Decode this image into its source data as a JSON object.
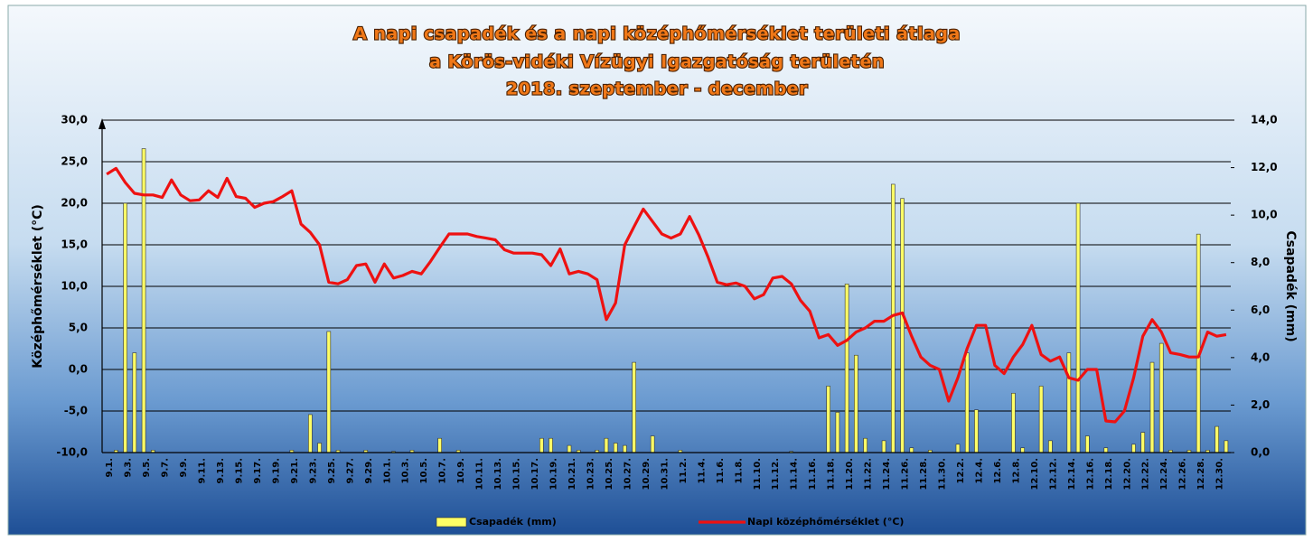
{
  "chart_data": {
    "type": "bar_line",
    "title": [
      "A napi csapadék és a napi középhőmérséklet területi átlaga",
      "a Körös-vidéki Vízügyi Igazgatóság területén",
      "2018. szeptember - december"
    ],
    "y_label": "Középhőmérséklet (°C)",
    "y2_label": "Csapadék (mm)",
    "categories": [
      "9.1.",
      null,
      "9.3.",
      null,
      "9.5.",
      null,
      "9.7.",
      null,
      "9.9.",
      null,
      "9.11.",
      null,
      "9.13.",
      null,
      "9.15.",
      null,
      "9.17.",
      null,
      "9.19.",
      null,
      "9.21.",
      null,
      "9.23.",
      null,
      "9.25.",
      null,
      "9.27.",
      null,
      "9.29.",
      null,
      "10.1.",
      null,
      "10.3.",
      null,
      "10.5.",
      null,
      "10.7.",
      null,
      "10.9.",
      null,
      "10.11.",
      null,
      "10.13.",
      null,
      "10.15.",
      null,
      "10.17.",
      null,
      "10.19.",
      null,
      "10.21.",
      null,
      "10.23.",
      null,
      "10.25.",
      null,
      "10.27.",
      null,
      "10.29.",
      null,
      "10.31.",
      null,
      "11.2.",
      null,
      "11.4.",
      null,
      "11.6.",
      null,
      "11.8.",
      null,
      "11.10.",
      null,
      "11.12.",
      null,
      "11.14.",
      null,
      "11.16.",
      null,
      "11.18.",
      null,
      "11.20.",
      null,
      "11.22.",
      null,
      "11.24.",
      null,
      "11.26.",
      null,
      "11.28.",
      null,
      "11.30.",
      null,
      "12.2.",
      null,
      "12.4.",
      null,
      "12.6.",
      null,
      "12.8.",
      null,
      "12.10.",
      null,
      "12.12.",
      null,
      "12.14.",
      null,
      "12.16.",
      null,
      "12.18.",
      null,
      "12.20.",
      null,
      "12.22.",
      null,
      "12.24.",
      null,
      "12.26.",
      null,
      "12.28.",
      null,
      "12.30.",
      null
    ],
    "series": [
      {
        "name": "Csapadék (mm)",
        "type": "bar",
        "axis": "y2",
        "color": "#ffff66",
        "values": [
          0,
          0.1,
          10.5,
          4.2,
          12.8,
          0.1,
          0,
          0,
          0,
          0,
          0,
          0,
          0,
          0,
          0,
          0,
          0,
          0,
          0,
          0,
          0.1,
          0,
          1.6,
          0.4,
          5.1,
          0.1,
          0,
          0,
          0.1,
          0,
          0,
          0.05,
          0,
          0.1,
          0,
          0,
          0.6,
          0,
          0.1,
          0,
          0,
          0,
          0,
          0,
          0,
          0,
          0,
          0.6,
          0.6,
          0,
          0.3,
          0.1,
          0,
          0.1,
          0.6,
          0.4,
          0.3,
          3.8,
          0,
          0.7,
          0,
          0,
          0.1,
          0,
          0,
          0,
          0,
          0,
          0,
          0,
          0,
          0,
          0,
          0,
          0.05,
          0,
          0,
          0,
          2.8,
          1.7,
          7.1,
          4.1,
          0.6,
          0,
          0.5,
          11.3,
          10.7,
          0.2,
          0,
          0.1,
          0,
          0,
          0.35,
          4.2,
          1.8,
          0,
          0,
          0,
          2.5,
          0.2,
          0,
          2.8,
          0.5,
          0,
          4.2,
          10.5,
          0.7,
          0,
          0.2,
          0,
          0,
          0.35,
          0.85,
          3.8,
          4.6,
          0.1,
          0,
          0.1,
          9.2,
          0.1,
          1.1,
          0.5
        ]
      },
      {
        "name": "Napi középhőmérséklet (°C)",
        "type": "line",
        "axis": "y",
        "color": "#ee1111",
        "values": [
          23.5,
          24.2,
          22.5,
          21.2,
          21.0,
          21.0,
          20.7,
          22.8,
          21.0,
          20.3,
          20.4,
          21.5,
          20.7,
          23.0,
          20.8,
          20.6,
          19.5,
          20.0,
          20.2,
          20.8,
          21.5,
          17.5,
          16.5,
          15.0,
          10.5,
          10.3,
          10.8,
          12.5,
          12.7,
          10.5,
          12.7,
          11.0,
          11.3,
          11.8,
          11.5,
          13.0,
          14.7,
          16.3,
          16.3,
          16.3,
          16.0,
          15.8,
          15.6,
          14.4,
          14.0,
          14.0,
          14.0,
          13.8,
          12.5,
          14.5,
          11.5,
          11.8,
          11.5,
          10.8,
          6.0,
          8.0,
          15.0,
          17.2,
          19.3,
          17.8,
          16.3,
          15.8,
          16.3,
          18.4,
          16.2,
          13.5,
          10.5,
          10.2,
          10.4,
          10.0,
          8.5,
          9.0,
          11.0,
          11.2,
          10.3,
          8.3,
          7.0,
          3.8,
          4.2,
          2.9,
          3.5,
          4.5,
          5.0,
          5.8,
          5.8,
          6.5,
          6.8,
          4.0,
          1.5,
          0.5,
          0.0,
          -3.8,
          -1.0,
          2.5,
          5.3,
          5.3,
          0.5,
          -0.5,
          1.5,
          3.0,
          5.3,
          1.8,
          1.0,
          1.5,
          -1.0,
          -1.3,
          0.0,
          0.0,
          -6.2,
          -6.3,
          -5.0,
          -1.0,
          4.0,
          6.0,
          4.5,
          2.0,
          1.8,
          1.5,
          1.5,
          4.5,
          4.0,
          4.2
        ]
      }
    ],
    "ylim": [
      -10,
      30
    ],
    "yticks": [
      {
        "value": -10,
        "label": "-10,0"
      },
      {
        "value": -5,
        "label": "-5,0"
      },
      {
        "value": 0,
        "label": "0,0"
      },
      {
        "value": 5,
        "label": "5,0"
      },
      {
        "value": 10,
        "label": "10,0"
      },
      {
        "value": 15,
        "label": "15,0"
      },
      {
        "value": 20,
        "label": "20,0"
      },
      {
        "value": 25,
        "label": "25,0"
      },
      {
        "value": 30,
        "label": "30,0"
      }
    ],
    "y2lim": [
      0,
      14
    ],
    "y2ticks": [
      {
        "value": 0,
        "label": "0,0"
      },
      {
        "value": 2,
        "label": "2,0"
      },
      {
        "value": 4,
        "label": "4,0"
      },
      {
        "value": 6,
        "label": "6,0"
      },
      {
        "value": 8,
        "label": "8,0"
      },
      {
        "value": 10,
        "label": "10,0"
      },
      {
        "value": 12,
        "label": "12,0"
      },
      {
        "value": 14,
        "label": "14,0"
      }
    ],
    "grid": true,
    "legend": "bottom"
  }
}
